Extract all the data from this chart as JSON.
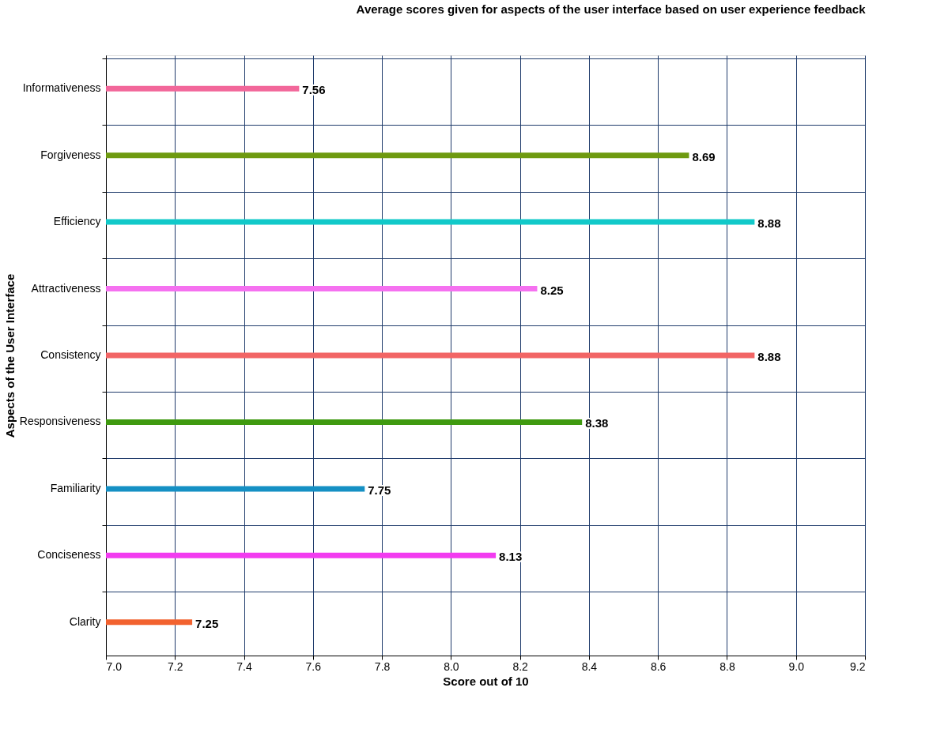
{
  "chart_data": {
    "type": "bar",
    "orientation": "horizontal",
    "title": "Average scores given for aspects of the user interface based on user experience feedback",
    "xlabel": "Score out of 10",
    "ylabel": "Aspects of the User Interface",
    "categories": [
      "Informativeness",
      "Forgiveness",
      "Efficiency",
      "Attractiveness",
      "Consistency",
      "Responsiveness",
      "Familiarity",
      "Conciseness",
      "Clarity"
    ],
    "values": [
      7.56,
      8.69,
      8.88,
      8.25,
      8.88,
      8.38,
      7.75,
      8.13,
      7.25
    ],
    "colors": [
      "#f2679a",
      "#6e9a10",
      "#12c9c9",
      "#f571f0",
      "#f26565",
      "#3f9a10",
      "#1590c4",
      "#f23cf0",
      "#f2622f"
    ],
    "xlim": [
      7.0,
      9.2
    ],
    "xticks": [
      {
        "value": 7.0,
        "label": "7.0"
      },
      {
        "value": 7.2,
        "label": "7.2"
      },
      {
        "value": 7.4,
        "label": "7.4"
      },
      {
        "value": 7.6,
        "label": "7.6"
      },
      {
        "value": 7.8,
        "label": "7.8"
      },
      {
        "value": 8.0,
        "label": "8.0"
      },
      {
        "value": 8.2,
        "label": "8.2"
      },
      {
        "value": 8.4,
        "label": "8.4"
      },
      {
        "value": 8.6,
        "label": "8.6"
      },
      {
        "value": 8.8,
        "label": "8.8"
      },
      {
        "value": 9.0,
        "label": "9.0"
      },
      {
        "value": 9.2,
        "label": "9.2"
      }
    ],
    "grid": true,
    "data_labels": true
  }
}
